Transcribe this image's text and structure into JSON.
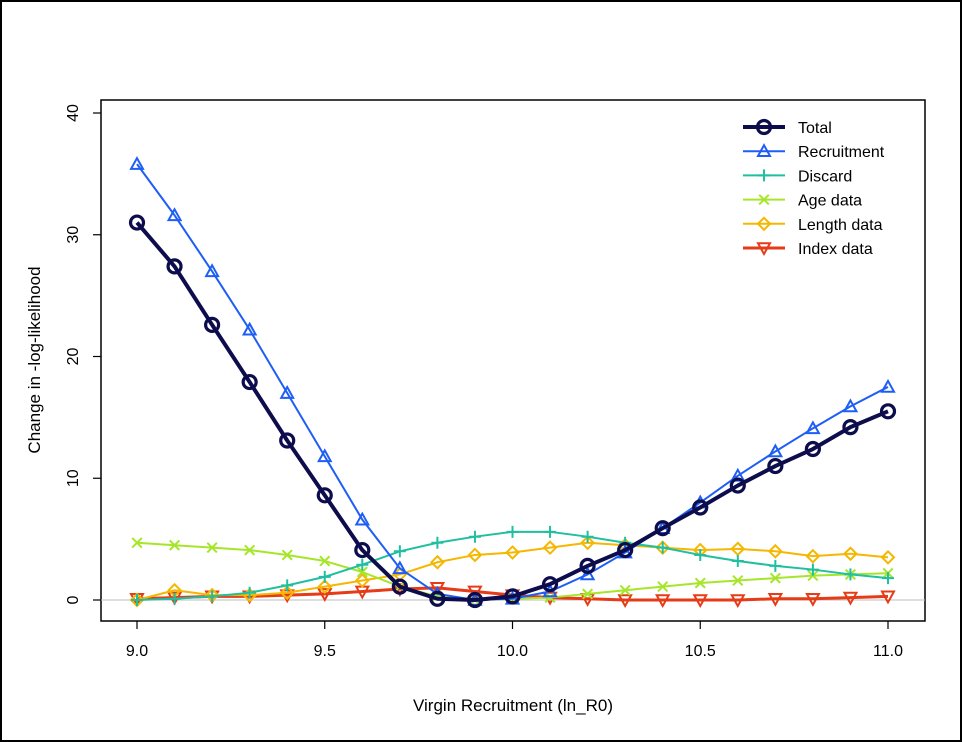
{
  "chart_data": {
    "type": "line",
    "xlabel": "Virgin Recruitment (ln_R0)",
    "ylabel": "Change in -log-likelihood",
    "xlim": [
      9.0,
      11.0
    ],
    "ylim": [
      0,
      40
    ],
    "xticks": [
      9.0,
      9.5,
      10.0,
      10.5,
      11.0
    ],
    "xtick_labels": [
      "9.0",
      "9.5",
      "10.0",
      "10.5",
      "11.0"
    ],
    "yticks": [
      0,
      10,
      20,
      30,
      40
    ],
    "ytick_labels": [
      "0",
      "10",
      "20",
      "30",
      "40"
    ],
    "reference_line": 0,
    "legend_position": "top-right",
    "x": [
      9.0,
      9.1,
      9.2,
      9.3,
      9.4,
      9.5,
      9.6,
      9.7,
      9.8,
      9.9,
      10.0,
      10.1,
      10.2,
      10.3,
      10.4,
      10.5,
      10.6,
      10.7,
      10.8,
      10.9,
      11.0
    ],
    "series": [
      {
        "name": "Total",
        "color": "#0d0d4d",
        "marker": "circle",
        "width": 4,
        "values": [
          31.0,
          27.4,
          22.6,
          17.9,
          13.1,
          8.6,
          4.1,
          1.1,
          0.1,
          0.0,
          0.3,
          1.3,
          2.8,
          4.1,
          5.9,
          7.6,
          9.4,
          11.0,
          12.4,
          14.2,
          15.5
        ]
      },
      {
        "name": "Recruitment",
        "color": "#1f5ef5",
        "marker": "triangle-up",
        "width": 2,
        "values": [
          35.8,
          31.6,
          27.0,
          22.2,
          17.0,
          11.8,
          6.6,
          2.6,
          0.5,
          0.0,
          0.1,
          0.7,
          2.1,
          3.9,
          5.9,
          8.0,
          10.2,
          12.2,
          14.1,
          15.9,
          17.5
        ]
      },
      {
        "name": "Discard",
        "color": "#1fbf9f",
        "marker": "plus",
        "width": 2,
        "values": [
          0.0,
          0.1,
          0.3,
          0.6,
          1.2,
          1.9,
          2.9,
          4.0,
          4.7,
          5.2,
          5.6,
          5.6,
          5.2,
          4.7,
          4.3,
          3.7,
          3.2,
          2.8,
          2.5,
          2.1,
          1.8
        ]
      },
      {
        "name": "Age data",
        "color": "#a6e62a",
        "marker": "cross",
        "width": 2,
        "values": [
          4.7,
          4.5,
          4.3,
          4.1,
          3.7,
          3.2,
          2.3,
          1.1,
          0.3,
          0.0,
          0.1,
          0.2,
          0.5,
          0.8,
          1.1,
          1.4,
          1.6,
          1.8,
          2.0,
          2.1,
          2.2
        ]
      },
      {
        "name": "Length data",
        "color": "#f5b700",
        "marker": "diamond",
        "width": 2,
        "values": [
          0.0,
          0.8,
          0.4,
          0.4,
          0.6,
          1.1,
          1.6,
          2.1,
          3.1,
          3.7,
          3.9,
          4.3,
          4.7,
          4.5,
          4.3,
          4.1,
          4.2,
          4.0,
          3.6,
          3.8,
          3.5
        ]
      },
      {
        "name": "Index data",
        "color": "#e63b17",
        "marker": "triangle-down",
        "width": 3,
        "values": [
          0.1,
          0.2,
          0.3,
          0.3,
          0.4,
          0.5,
          0.7,
          0.9,
          1.0,
          0.7,
          0.4,
          0.2,
          0.1,
          0.0,
          0.0,
          0.0,
          0.0,
          0.1,
          0.1,
          0.2,
          0.3
        ]
      }
    ]
  }
}
